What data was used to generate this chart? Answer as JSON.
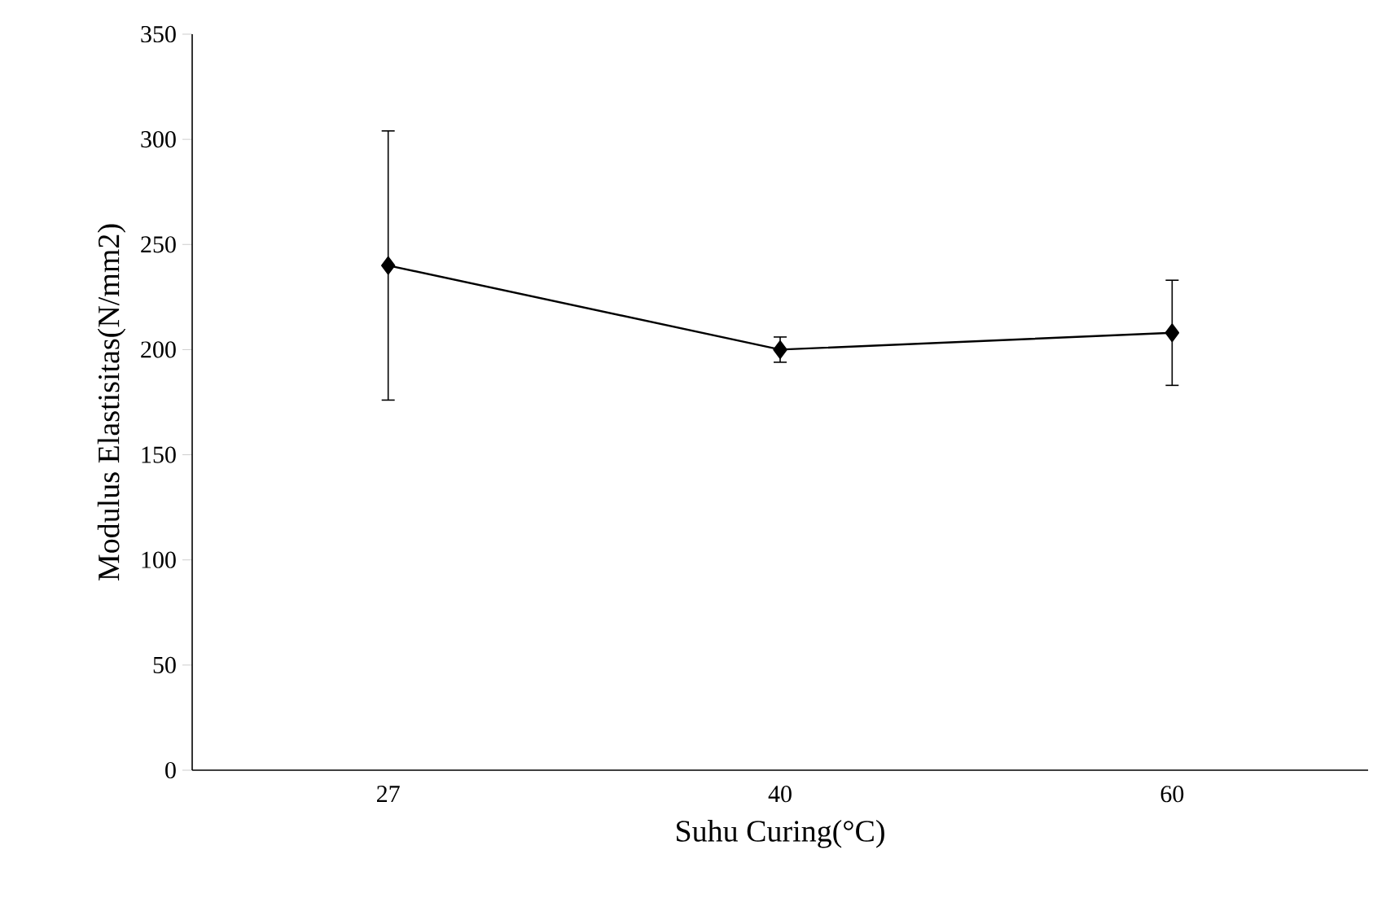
{
  "chart_data": {
    "type": "line",
    "xlabel": "Suhu Curing(°C)",
    "ylabel": "Modulus Elastisitas(N/mm2)",
    "categories": [
      "27",
      "40",
      "60"
    ],
    "values": [
      240,
      200,
      208
    ],
    "errors": [
      64,
      6,
      25
    ],
    "color": "#000000",
    "marker": "diamond",
    "line_style": "solid",
    "ylim": [
      0,
      350
    ],
    "yticks": [
      0,
      50,
      100,
      150,
      200,
      250,
      300,
      350
    ]
  }
}
